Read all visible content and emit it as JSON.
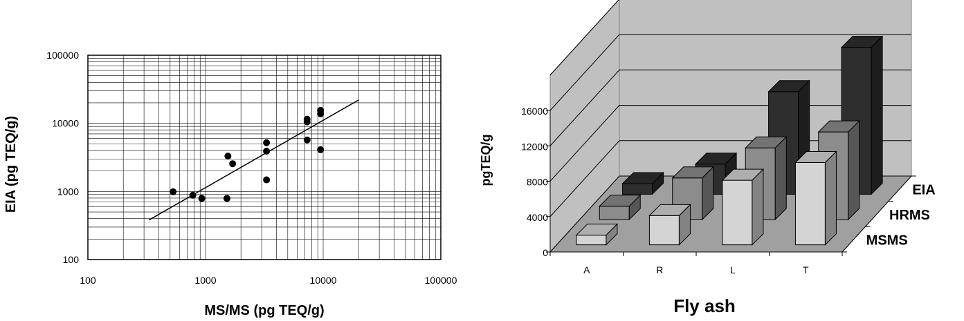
{
  "chart_data": [
    {
      "type": "scatter",
      "title": "",
      "xlabel": "MS/MS (pg TEQ/g)",
      "ylabel": "EIA (pg TEQ/g)",
      "xscale": "log",
      "yscale": "log",
      "xlim": [
        100,
        100000
      ],
      "ylim": [
        100,
        100000
      ],
      "xticks": [
        "100",
        "1000",
        "10000",
        "100000"
      ],
      "yticks": [
        "100",
        "1000",
        "10000",
        "100000"
      ],
      "grid": true,
      "legend": "none",
      "points": [
        {
          "x": 530,
          "y": 990
        },
        {
          "x": 780,
          "y": 880
        },
        {
          "x": 930,
          "y": 790
        },
        {
          "x": 1550,
          "y": 3300
        },
        {
          "x": 1520,
          "y": 790
        },
        {
          "x": 1700,
          "y": 2550
        },
        {
          "x": 3300,
          "y": 5200
        },
        {
          "x": 3300,
          "y": 3900
        },
        {
          "x": 3300,
          "y": 1480
        },
        {
          "x": 7300,
          "y": 11500
        },
        {
          "x": 7300,
          "y": 10500
        },
        {
          "x": 7300,
          "y": 5700
        },
        {
          "x": 9500,
          "y": 15500
        },
        {
          "x": 9500,
          "y": 13800
        },
        {
          "x": 9500,
          "y": 4100
        }
      ],
      "trendline": [
        {
          "x": 330,
          "y": 380
        },
        {
          "x": 20000,
          "y": 22000
        }
      ]
    },
    {
      "type": "bar",
      "subtype": "3d-column",
      "title": "",
      "xlabel": "Fly ash",
      "ylabel": "pgTEQ/g",
      "categories": [
        "A",
        "R",
        "L",
        "T"
      ],
      "yticks": [
        "0",
        "4000",
        "8000",
        "12000",
        "16000"
      ],
      "ylim": [
        0,
        16000
      ],
      "grid": true,
      "legend": "depth-axis",
      "series": [
        {
          "name": "MSMS",
          "values": [
            1100,
            3300,
            7300,
            9300
          ],
          "color": "#d4d4d4"
        },
        {
          "name": "HRMS",
          "values": [
            1500,
            4700,
            8100,
            9900
          ],
          "color": "#8c8c8c"
        },
        {
          "name": "EIA",
          "values": [
            1200,
            3400,
            11600,
            16600
          ],
          "color": "#2e2e2e"
        }
      ]
    }
  ]
}
